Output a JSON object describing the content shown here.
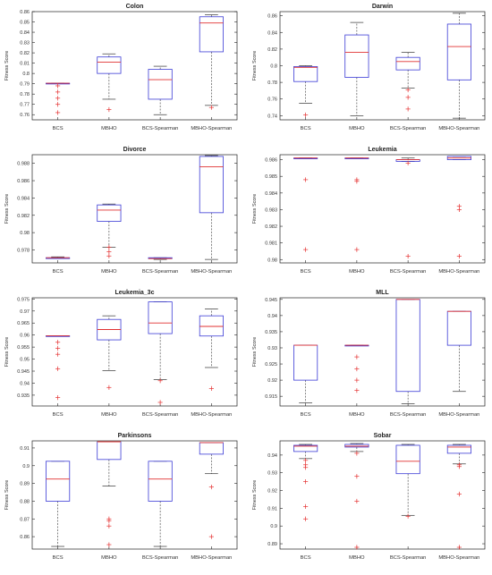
{
  "chart_data": [
    {
      "type": "boxplot",
      "title": "Colon",
      "ylabel": "Fitness Score",
      "categories": [
        "BCS",
        "MBHO",
        "BCS-Spearman",
        "MBHO-Spearman"
      ],
      "yticks": [
        "0.76",
        "0.77",
        "0.78",
        "0.79",
        "0.8",
        "0.81",
        "0.82",
        "0.83",
        "0.84",
        "0.85",
        "0.86"
      ],
      "ylim": [
        0.755,
        0.86
      ],
      "boxes": [
        {
          "category": "BCS",
          "whisker_low": 0.7905,
          "q1": 0.7905,
          "median": 0.7905,
          "q3": 0.7905,
          "whisker_high": 0.7905,
          "outliers": [
            0.788,
            0.782,
            0.776,
            0.77,
            0.762
          ]
        },
        {
          "category": "MBHO",
          "whisker_low": 0.775,
          "q1": 0.8,
          "median": 0.811,
          "q3": 0.816,
          "whisker_high": 0.819,
          "outliers": [
            0.765
          ]
        },
        {
          "category": "BCS-Spearman",
          "whisker_low": 0.76,
          "q1": 0.775,
          "median": 0.794,
          "q3": 0.804,
          "whisker_high": 0.807,
          "outliers": []
        },
        {
          "category": "MBHO-Spearman",
          "whisker_low": 0.769,
          "q1": 0.821,
          "median": 0.849,
          "q3": 0.855,
          "whisker_high": 0.857,
          "outliers": [
            0.767
          ]
        }
      ]
    },
    {
      "type": "boxplot",
      "title": "Darwin",
      "ylabel": "Fitness Score",
      "categories": [
        "BCS",
        "MBHO",
        "BCS-Spearman",
        "MBHO-Spearman"
      ],
      "yticks": [
        "0.74",
        "0.76",
        "0.78",
        "0.8",
        "0.82",
        "0.84",
        "0.86"
      ],
      "ylim": [
        0.735,
        0.865
      ],
      "boxes": [
        {
          "category": "BCS",
          "whisker_low": 0.755,
          "q1": 0.781,
          "median": 0.798,
          "q3": 0.799,
          "whisker_high": 0.8,
          "outliers": [
            0.741
          ]
        },
        {
          "category": "MBHO",
          "whisker_low": 0.74,
          "q1": 0.786,
          "median": 0.816,
          "q3": 0.837,
          "whisker_high": 0.852,
          "outliers": []
        },
        {
          "category": "BCS-Spearman",
          "whisker_low": 0.773,
          "q1": 0.795,
          "median": 0.805,
          "q3": 0.81,
          "whisker_high": 0.816,
          "outliers": [
            0.771,
            0.762,
            0.748
          ]
        },
        {
          "category": "MBHO-Spearman",
          "whisker_low": 0.737,
          "q1": 0.783,
          "median": 0.823,
          "q3": 0.85,
          "whisker_high": 0.863,
          "outliers": []
        }
      ]
    },
    {
      "type": "boxplot",
      "title": "Divorce",
      "ylabel": "Fitness Score",
      "categories": [
        "BCS",
        "MBHO",
        "BCS-Spearman",
        "MBHO-Spearman"
      ],
      "yticks": [
        "0.978",
        "0.98",
        "0.982",
        "0.984",
        "0.986",
        "0.988"
      ],
      "ylim": [
        0.9765,
        0.989
      ],
      "boxes": [
        {
          "category": "BCS",
          "whisker_low": 0.977,
          "q1": 0.977,
          "median": 0.9771,
          "q3": 0.9771,
          "whisker_high": 0.9772,
          "outliers": []
        },
        {
          "category": "MBHO",
          "whisker_low": 0.9783,
          "q1": 0.9813,
          "median": 0.9826,
          "q3": 0.9832,
          "whisker_high": 0.9833,
          "outliers": [
            0.9783,
            0.9778,
            0.9773
          ]
        },
        {
          "category": "BCS-Spearman",
          "whisker_low": 0.9769,
          "q1": 0.977,
          "median": 0.977,
          "q3": 0.9771,
          "whisker_high": 0.9771,
          "outliers": []
        },
        {
          "category": "MBHO-Spearman",
          "whisker_low": 0.9769,
          "q1": 0.9823,
          "median": 0.9876,
          "q3": 0.9888,
          "whisker_high": 0.9889,
          "outliers": []
        }
      ]
    },
    {
      "type": "boxplot",
      "title": "Leukemia",
      "ylabel": "Fitness Score",
      "categories": [
        "BCS",
        "MBHO",
        "BCS-Spearman",
        "MBHO-Spearman"
      ],
      "yticks": [
        "0.98",
        "0.981",
        "0.982",
        "0.983",
        "0.984",
        "0.985",
        "0.986"
      ],
      "ylim": [
        0.9798,
        0.9863
      ],
      "boxes": [
        {
          "category": "BCS",
          "whisker_low": 0.9861,
          "q1": 0.9861,
          "median": 0.9861,
          "q3": 0.9861,
          "whisker_high": 0.9861,
          "outliers": [
            0.9848,
            0.9806
          ]
        },
        {
          "category": "MBHO",
          "whisker_low": 0.9861,
          "q1": 0.9861,
          "median": 0.9861,
          "q3": 0.9861,
          "whisker_high": 0.9861,
          "outliers": [
            0.9848,
            0.9847,
            0.9806
          ]
        },
        {
          "category": "BCS-Spearman",
          "whisker_low": 0.9859,
          "q1": 0.9859,
          "median": 0.986,
          "q3": 0.986,
          "whisker_high": 0.9861,
          "outliers": [
            0.9858,
            0.9802
          ]
        },
        {
          "category": "MBHO-Spearman",
          "whisker_low": 0.986,
          "q1": 0.986,
          "median": 0.9861,
          "q3": 0.9862,
          "whisker_high": 0.9862,
          "outliers": [
            0.9832,
            0.983,
            0.9802
          ]
        }
      ]
    },
    {
      "type": "boxplot",
      "title": "Leukemia_3c",
      "ylabel": "Fitness Score",
      "categories": [
        "BCS",
        "MBHO",
        "BCS-Spearman",
        "MBHO-Spearman"
      ],
      "yticks": [
        "0.935",
        "0.94",
        "0.945",
        "0.95",
        "0.955",
        "0.96",
        "0.965",
        "0.97",
        "0.975"
      ],
      "ylim": [
        0.9305,
        0.9755
      ],
      "boxes": [
        {
          "category": "BCS",
          "whisker_low": 0.9597,
          "q1": 0.9597,
          "median": 0.9597,
          "q3": 0.9597,
          "whisker_high": 0.9597,
          "outliers": [
            0.957,
            0.9545,
            0.952,
            0.946,
            0.934
          ]
        },
        {
          "category": "MBHO",
          "whisker_low": 0.9452,
          "q1": 0.958,
          "median": 0.9623,
          "q3": 0.9665,
          "whisker_high": 0.968,
          "outliers": [
            0.9382
          ]
        },
        {
          "category": "BCS-Spearman",
          "whisker_low": 0.9415,
          "q1": 0.9606,
          "median": 0.965,
          "q3": 0.9738,
          "whisker_high": 0.9738,
          "outliers": [
            0.941,
            0.932
          ]
        },
        {
          "category": "MBHO-Spearman",
          "whisker_low": 0.9465,
          "q1": 0.9596,
          "median": 0.9636,
          "q3": 0.968,
          "whisker_high": 0.9708,
          "outliers": [
            0.9378
          ]
        }
      ]
    },
    {
      "type": "boxplot",
      "title": "MLL",
      "ylabel": "Fitness Score",
      "categories": [
        "BCS",
        "MBHO",
        "BCS-Spearman",
        "MBHO-Spearman"
      ],
      "yticks": [
        "0.915",
        "0.92",
        "0.925",
        "0.93",
        "0.935",
        "0.94",
        "0.945"
      ],
      "ylim": [
        0.912,
        0.9455
      ],
      "boxes": [
        {
          "category": "BCS",
          "whisker_low": 0.913,
          "q1": 0.92,
          "median": 0.9308,
          "q3": 0.9308,
          "whisker_high": 0.9308,
          "outliers": []
        },
        {
          "category": "MBHO",
          "whisker_low": 0.9308,
          "q1": 0.9308,
          "median": 0.9308,
          "q3": 0.9308,
          "whisker_high": 0.9308,
          "outliers": [
            0.9272,
            0.9235,
            0.92,
            0.9168
          ]
        },
        {
          "category": "BCS-Spearman",
          "whisker_low": 0.9127,
          "q1": 0.9165,
          "median": 0.945,
          "q3": 0.945,
          "whisker_high": 0.945,
          "outliers": []
        },
        {
          "category": "MBHO-Spearman",
          "whisker_low": 0.9165,
          "q1": 0.9308,
          "median": 0.9413,
          "q3": 0.9413,
          "whisker_high": 0.9413,
          "outliers": []
        }
      ]
    },
    {
      "type": "boxplot",
      "title": "Parkinsons",
      "ylabel": "Fitness Score",
      "categories": [
        "BCS",
        "MBHO",
        "BCS-Spearman",
        "MBHO-Spearman"
      ],
      "yticks": [
        "0.86",
        "0.87",
        "0.88",
        "0.89",
        "0.9",
        "0.91"
      ],
      "ylim": [
        0.853,
        0.914
      ],
      "boxes": [
        {
          "category": "BCS",
          "whisker_low": 0.8545,
          "q1": 0.88,
          "median": 0.8925,
          "q3": 0.9025,
          "whisker_high": 0.9025,
          "outliers": []
        },
        {
          "category": "MBHO",
          "whisker_low": 0.8885,
          "q1": 0.9035,
          "median": 0.9135,
          "q3": 0.9135,
          "whisker_high": 0.9135,
          "outliers": [
            0.87,
            0.869,
            0.866,
            0.8555
          ]
        },
        {
          "category": "BCS-Spearman",
          "whisker_low": 0.8545,
          "q1": 0.88,
          "median": 0.8925,
          "q3": 0.9025,
          "whisker_high": 0.9025,
          "outliers": []
        },
        {
          "category": "MBHO-Spearman",
          "whisker_low": 0.8955,
          "q1": 0.9065,
          "median": 0.913,
          "q3": 0.913,
          "whisker_high": 0.913,
          "outliers": [
            0.888,
            0.86
          ]
        }
      ]
    },
    {
      "type": "boxplot",
      "title": "Sobar",
      "ylabel": "Fitness Score",
      "categories": [
        "BCS",
        "MBHO",
        "BCS-Spearman",
        "MBHO-Spearman"
      ],
      "yticks": [
        "0.89",
        "0.9",
        "0.91",
        "0.92",
        "0.93",
        "0.94"
      ],
      "ylim": [
        0.887,
        0.948
      ],
      "boxes": [
        {
          "category": "BCS",
          "whisker_low": 0.938,
          "q1": 0.942,
          "median": 0.945,
          "q3": 0.9455,
          "whisker_high": 0.946,
          "outliers": [
            0.937,
            0.9345,
            0.933,
            0.925,
            0.911,
            0.904
          ]
        },
        {
          "category": "MBHO",
          "whisker_low": 0.942,
          "q1": 0.9445,
          "median": 0.945,
          "q3": 0.946,
          "whisker_high": 0.9465,
          "outliers": [
            0.941,
            0.928,
            0.914,
            0.888
          ]
        },
        {
          "category": "BCS-Spearman",
          "whisker_low": 0.906,
          "q1": 0.9295,
          "median": 0.9365,
          "q3": 0.9455,
          "whisker_high": 0.946,
          "outliers": [
            0.9055
          ]
        },
        {
          "category": "MBHO-Spearman",
          "whisker_low": 0.935,
          "q1": 0.941,
          "median": 0.9445,
          "q3": 0.9455,
          "whisker_high": 0.946,
          "outliers": [
            0.9345,
            0.9335,
            0.918,
            0.888
          ]
        }
      ]
    }
  ]
}
